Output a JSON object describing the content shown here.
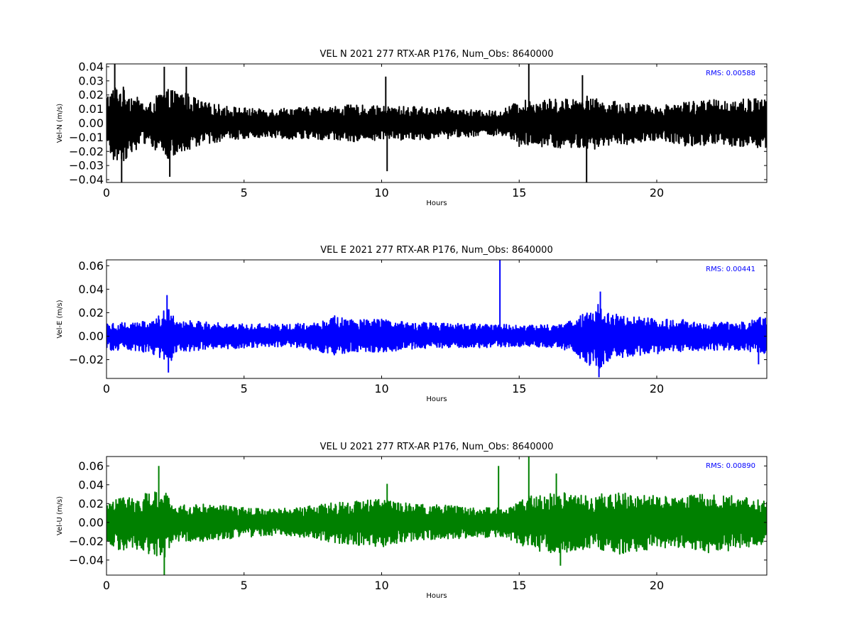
{
  "chart_data": [
    {
      "type": "line",
      "title": "VEL N 2021 277 RTX-AR  P176, Num_Obs: 8640000",
      "xlabel": "Hours",
      "ylabel": "Vel-N (m/s)",
      "xlim": [
        0,
        24
      ],
      "ylim": [
        -0.042,
        0.042
      ],
      "xticks": [
        0,
        5,
        10,
        15,
        20
      ],
      "xtick_labels": [
        "0",
        "5",
        "10",
        "15",
        "20"
      ],
      "yticks": [
        -0.04,
        -0.03,
        -0.02,
        -0.01,
        0.0,
        0.01,
        0.02,
        0.03,
        0.04
      ],
      "ytick_labels": [
        "−0.04",
        "−0.03",
        "−0.02",
        "−0.01",
        "0.00",
        "0.01",
        "0.02",
        "0.03",
        "0.04"
      ],
      "annotation": "RMS:  0.00588",
      "annotation_color": "#0000ff",
      "grid": false,
      "series": [
        {
          "color": "#000000",
          "envelope": {
            "x": [
              0,
              0.3,
              0.6,
              1.0,
              1.5,
              2.0,
              2.3,
              2.8,
              3.5,
              4.5,
              5.5,
              6.5,
              8.0,
              9.0,
              10.0,
              11.0,
              12.5,
              13.5,
              14.3,
              15.0,
              16.0,
              17.0,
              17.4,
              18.0,
              19.0,
              20.0,
              21.0,
              22.5,
              24.0
            ],
            "upper": [
              0.02,
              0.027,
              0.026,
              0.02,
              0.013,
              0.023,
              0.024,
              0.023,
              0.015,
              0.012,
              0.01,
              0.011,
              0.012,
              0.013,
              0.012,
              0.012,
              0.011,
              0.009,
              0.009,
              0.016,
              0.017,
              0.018,
              0.02,
              0.016,
              0.015,
              0.012,
              0.016,
              0.017,
              0.018
            ],
            "lower": [
              -0.02,
              -0.028,
              -0.027,
              -0.02,
              -0.013,
              -0.025,
              -0.026,
              -0.022,
              -0.015,
              -0.012,
              -0.01,
              -0.011,
              -0.012,
              -0.013,
              -0.012,
              -0.012,
              -0.011,
              -0.009,
              -0.009,
              -0.017,
              -0.018,
              -0.018,
              -0.022,
              -0.016,
              -0.015,
              -0.012,
              -0.016,
              -0.017,
              -0.018
            ]
          },
          "spikes": [
            {
              "x": 0.3,
              "y": 0.042
            },
            {
              "x": 0.55,
              "y": -0.042
            },
            {
              "x": 2.1,
              "y": 0.04
            },
            {
              "x": 2.3,
              "y": -0.038
            },
            {
              "x": 2.9,
              "y": 0.04
            },
            {
              "x": 10.15,
              "y": 0.033
            },
            {
              "x": 10.2,
              "y": -0.034
            },
            {
              "x": 15.35,
              "y": 0.042
            },
            {
              "x": 17.3,
              "y": 0.034
            },
            {
              "x": 17.45,
              "y": -0.042
            }
          ]
        }
      ]
    },
    {
      "type": "line",
      "title": "VEL E 2021 277 RTX-AR  P176, Num_Obs: 8640000",
      "xlabel": "Hours",
      "ylabel": "Vel-E (m/s)",
      "xlim": [
        0,
        24
      ],
      "ylim": [
        -0.036,
        0.065
      ],
      "xticks": [
        0,
        5,
        10,
        15,
        20
      ],
      "xtick_labels": [
        "0",
        "5",
        "10",
        "15",
        "20"
      ],
      "yticks": [
        -0.02,
        0.0,
        0.02,
        0.04,
        0.06
      ],
      "ytick_labels": [
        "−0.02",
        "0.00",
        "0.02",
        "0.04",
        "0.06"
      ],
      "annotation": "RMS:  0.00441",
      "annotation_color": "#0000ff",
      "grid": false,
      "series": [
        {
          "color": "#0000ff",
          "envelope": {
            "x": [
              0,
              1.0,
              1.8,
              2.2,
              2.6,
              3.5,
              5.0,
              6.5,
              7.5,
              8.3,
              9.0,
              10.0,
              11.0,
              12.5,
              13.5,
              14.5,
              15.5,
              16.5,
              17.3,
              17.8,
              18.3,
              19.0,
              20.0,
              21.0,
              22.0,
              23.0,
              24.0
            ],
            "upper": [
              0.012,
              0.012,
              0.015,
              0.025,
              0.015,
              0.012,
              0.011,
              0.01,
              0.012,
              0.018,
              0.014,
              0.015,
              0.012,
              0.011,
              0.011,
              0.01,
              0.01,
              0.01,
              0.02,
              0.028,
              0.02,
              0.017,
              0.015,
              0.014,
              0.012,
              0.012,
              0.018
            ],
            "lower": [
              -0.012,
              -0.012,
              -0.016,
              -0.026,
              -0.015,
              -0.012,
              -0.01,
              -0.009,
              -0.012,
              -0.016,
              -0.013,
              -0.014,
              -0.011,
              -0.01,
              -0.01,
              -0.009,
              -0.009,
              -0.01,
              -0.02,
              -0.03,
              -0.02,
              -0.017,
              -0.015,
              -0.013,
              -0.012,
              -0.012,
              -0.016
            ]
          },
          "spikes": [
            {
              "x": 2.2,
              "y": 0.035
            },
            {
              "x": 2.25,
              "y": -0.031
            },
            {
              "x": 14.3,
              "y": 0.065
            },
            {
              "x": 17.95,
              "y": 0.038
            },
            {
              "x": 17.9,
              "y": -0.035
            },
            {
              "x": 23.7,
              "y": -0.024
            }
          ]
        }
      ]
    },
    {
      "type": "line",
      "title": "VEL U 2021 277 RTX-AR  P176, Num_Obs: 8640000",
      "xlabel": "Hours",
      "ylabel": "Vel-U (m/s)",
      "xlim": [
        0,
        24
      ],
      "ylim": [
        -0.056,
        0.07
      ],
      "xticks": [
        0,
        5,
        10,
        15,
        20
      ],
      "xtick_labels": [
        "0",
        "5",
        "10",
        "15",
        "20"
      ],
      "yticks": [
        -0.04,
        -0.02,
        0.0,
        0.02,
        0.04,
        0.06
      ],
      "ytick_labels": [
        "−0.04",
        "−0.02",
        "0.00",
        "0.02",
        "0.04",
        "0.06"
      ],
      "annotation": "RMS:  0.00890",
      "annotation_color": "#0000ff",
      "grid": false,
      "series": [
        {
          "color": "#008000",
          "envelope": {
            "x": [
              0,
              0.5,
              1.0,
              1.8,
              2.1,
              2.5,
              3.5,
              5.0,
              6.0,
              7.0,
              8.0,
              9.0,
              10.0,
              11.0,
              12.5,
              13.5,
              14.5,
              15.5,
              16.5,
              17.5,
              18.5,
              19.5,
              20.5,
              21.5,
              22.5,
              23.5,
              24.0
            ],
            "upper": [
              0.02,
              0.028,
              0.027,
              0.035,
              0.035,
              0.018,
              0.02,
              0.016,
              0.014,
              0.016,
              0.02,
              0.024,
              0.025,
              0.02,
              0.018,
              0.016,
              0.015,
              0.03,
              0.032,
              0.028,
              0.033,
              0.03,
              0.027,
              0.032,
              0.03,
              0.025,
              0.022
            ],
            "lower": [
              -0.02,
              -0.03,
              -0.028,
              -0.037,
              -0.038,
              -0.02,
              -0.02,
              -0.016,
              -0.014,
              -0.016,
              -0.02,
              -0.025,
              -0.026,
              -0.02,
              -0.018,
              -0.016,
              -0.016,
              -0.03,
              -0.034,
              -0.028,
              -0.035,
              -0.031,
              -0.027,
              -0.033,
              -0.031,
              -0.026,
              -0.022
            ]
          },
          "spikes": [
            {
              "x": 1.9,
              "y": 0.06
            },
            {
              "x": 2.1,
              "y": -0.056
            },
            {
              "x": 14.25,
              "y": 0.06
            },
            {
              "x": 15.35,
              "y": 0.07
            },
            {
              "x": 16.35,
              "y": 0.052
            },
            {
              "x": 10.2,
              "y": 0.041
            },
            {
              "x": 16.5,
              "y": -0.046
            }
          ]
        }
      ]
    }
  ]
}
